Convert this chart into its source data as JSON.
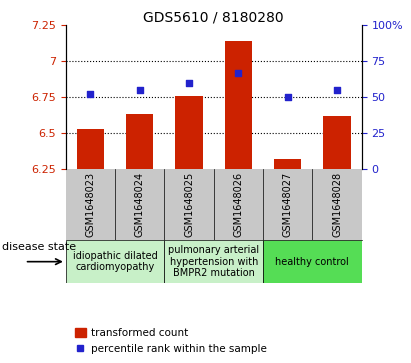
{
  "title": "GDS5610 / 8180280",
  "samples": [
    "GSM1648023",
    "GSM1648024",
    "GSM1648025",
    "GSM1648026",
    "GSM1648027",
    "GSM1648028"
  ],
  "transformed_count": [
    6.53,
    6.63,
    6.76,
    7.14,
    6.32,
    6.62
  ],
  "percentile_rank": [
    52,
    55,
    60,
    67,
    50,
    55
  ],
  "ylim_left": [
    6.25,
    7.25
  ],
  "ylim_right": [
    0,
    100
  ],
  "yticks_left": [
    6.25,
    6.5,
    6.75,
    7.0,
    7.25
  ],
  "ytick_labels_left": [
    "6.25",
    "6.5",
    "6.75",
    "7",
    "7.25"
  ],
  "yticks_right": [
    0,
    25,
    50,
    75,
    100
  ],
  "ytick_labels_right": [
    "0",
    "25",
    "50",
    "75",
    "100%"
  ],
  "hlines": [
    6.5,
    6.75,
    7.0
  ],
  "bar_color": "#cc2200",
  "dot_color": "#2222cc",
  "bar_width": 0.55,
  "group_info": [
    {
      "start": 0,
      "end": 1,
      "label": "idiopathic dilated\ncardiomyopathy",
      "color": "#c8f0c8"
    },
    {
      "start": 2,
      "end": 3,
      "label": "pulmonary arterial\nhypertension with\nBMPR2 mutation",
      "color": "#c8f0c8"
    },
    {
      "start": 4,
      "end": 5,
      "label": "healthy control",
      "color": "#55dd55"
    }
  ],
  "legend_bar_label": "transformed count",
  "legend_dot_label": "percentile rank within the sample",
  "disease_state_label": "disease state",
  "background_color": "#ffffff",
  "tick_label_color_left": "#cc2200",
  "tick_label_color_right": "#2222cc",
  "gray_color": "#c8c8c8",
  "title_fontsize": 10,
  "tick_fontsize": 8,
  "sample_fontsize": 7,
  "legend_fontsize": 7.5,
  "disease_fontsize": 7,
  "disease_label_fontsize": 8
}
